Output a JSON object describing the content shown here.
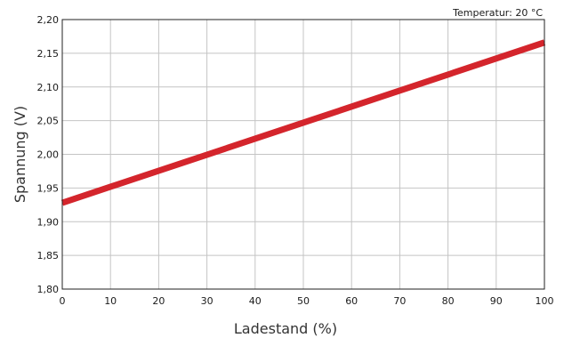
{
  "chart_data": {
    "type": "line",
    "title": "",
    "annotation": "Temperatur: 20 °C",
    "xlabel": "Ladestand (%)",
    "ylabel": "Spannung (V)",
    "xlim": [
      0,
      100
    ],
    "ylim": [
      1.8,
      2.2
    ],
    "x_ticks": [
      "0",
      "10",
      "20",
      "30",
      "40",
      "50",
      "60",
      "70",
      "80",
      "90",
      "100"
    ],
    "y_ticks": [
      "1,80",
      "1,85",
      "1,90",
      "1,95",
      "2,00",
      "2,05",
      "2,10",
      "2,15",
      "2,20"
    ],
    "grid": true,
    "series": [
      {
        "x": [
          0,
          100
        ],
        "y": [
          1.928,
          2.166
        ],
        "color": "#d4252c"
      }
    ]
  }
}
